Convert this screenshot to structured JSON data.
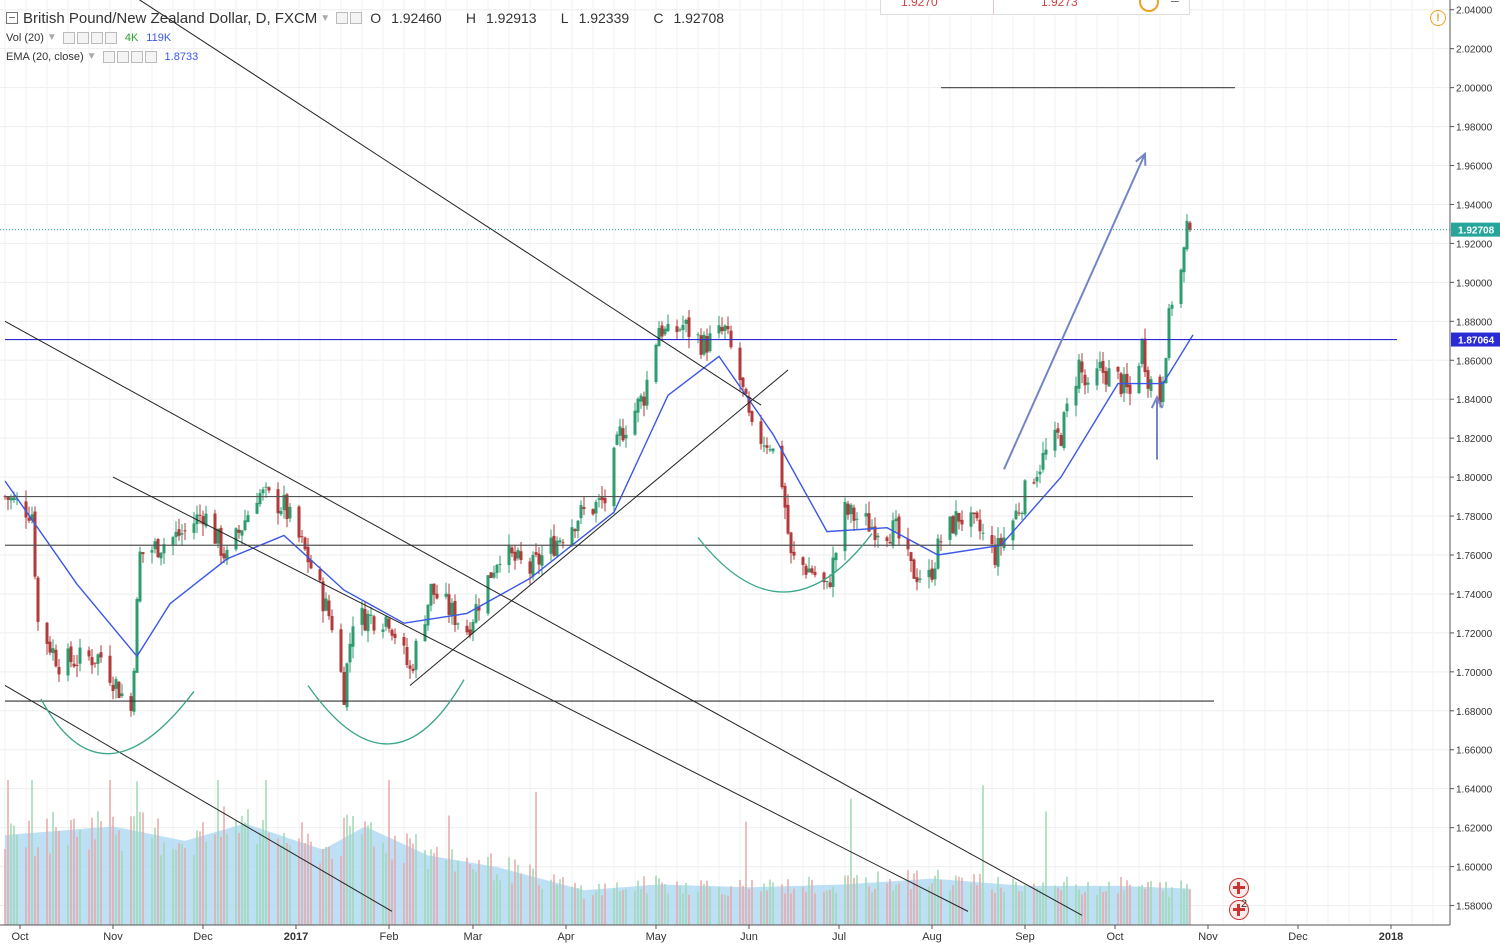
{
  "legend": {
    "symbol": "British Pound/New Zealand Dollar, D, FXCM",
    "open_label": "O",
    "open": "1.92460",
    "high_label": "H",
    "high": "1.92913",
    "low_label": "L",
    "low": "1.92339",
    "close_label": "C",
    "close": "1.92708",
    "vol_name": "Vol (20)",
    "vol_value_1": "4K",
    "vol_value_2": "119K",
    "ema_name": "EMA (20, close)",
    "ema_value": "1.8733"
  },
  "top_widget": {
    "bid": "1.9270",
    "ask": "1.9273"
  },
  "flags": {
    "count": "2"
  },
  "colors": {
    "ema": "#3a57e8",
    "resistance": "#2b2bd6",
    "candle_up": "#2e9c6f",
    "candle_down": "#b33a3a",
    "volume_area": "#a8d6f2",
    "cup_arcs": "#3aa58a",
    "arrows": "#7385c4",
    "last_price": "#26a69a"
  },
  "chart_data": {
    "type": "candlestick",
    "title": "British Pound/New Zealand Dollar, D, FXCM",
    "x_ticks": [
      "Oct",
      "Nov",
      "Dec",
      "2017",
      "Feb",
      "Mar",
      "Apr",
      "May",
      "Jun",
      "Jul",
      "Aug",
      "Sep",
      "Oct",
      "Nov",
      "Dec",
      "2018"
    ],
    "y_ticks": [
      "2.04000",
      "2.02000",
      "2.00000",
      "1.98000",
      "1.96000",
      "1.94000",
      "1.92000",
      "1.90000",
      "1.88000",
      "1.86000",
      "1.84000",
      "1.82000",
      "1.80000",
      "1.78000",
      "1.76000",
      "1.74000",
      "1.72000",
      "1.70000",
      "1.68000",
      "1.66000",
      "1.64000",
      "1.62000",
      "1.60000",
      "1.58000"
    ],
    "ylim": [
      1.57,
      2.045
    ],
    "grid": true,
    "last_price_label": "1.92708",
    "level_label": "1.87064",
    "anchors": [
      {
        "date": "2016-09-26",
        "close": 1.79
      },
      {
        "date": "2016-10-05",
        "close": 1.782
      },
      {
        "date": "2016-10-07",
        "close": 1.725
      },
      {
        "date": "2016-10-14",
        "close": 1.705
      },
      {
        "date": "2016-10-28",
        "close": 1.708
      },
      {
        "date": "2016-11-07",
        "close": 1.68
      },
      {
        "date": "2016-11-10",
        "close": 1.76
      },
      {
        "date": "2016-11-25",
        "close": 1.772
      },
      {
        "date": "2016-12-01",
        "close": 1.782
      },
      {
        "date": "2016-12-09",
        "close": 1.758
      },
      {
        "date": "2016-12-19",
        "close": 1.792
      },
      {
        "date": "2016-12-28",
        "close": 1.785
      },
      {
        "date": "2017-01-05",
        "close": 1.758
      },
      {
        "date": "2017-01-13",
        "close": 1.725
      },
      {
        "date": "2017-01-17",
        "close": 1.69
      },
      {
        "date": "2017-01-20",
        "close": 1.728
      },
      {
        "date": "2017-02-01",
        "close": 1.728
      },
      {
        "date": "2017-02-08",
        "close": 1.7
      },
      {
        "date": "2017-02-15",
        "close": 1.742
      },
      {
        "date": "2017-02-27",
        "close": 1.722
      },
      {
        "date": "2017-03-10",
        "close": 1.762
      },
      {
        "date": "2017-03-20",
        "close": 1.752
      },
      {
        "date": "2017-04-05",
        "close": 1.78
      },
      {
        "date": "2017-04-14",
        "close": 1.788
      },
      {
        "date": "2017-04-19",
        "close": 1.822
      },
      {
        "date": "2017-04-27",
        "close": 1.842
      },
      {
        "date": "2017-05-02",
        "close": 1.878
      },
      {
        "date": "2017-05-05",
        "close": 1.872
      },
      {
        "date": "2017-05-10",
        "close": 1.878
      },
      {
        "date": "2017-05-17",
        "close": 1.868
      },
      {
        "date": "2017-05-24",
        "close": 1.875
      },
      {
        "date": "2017-05-29",
        "close": 1.85
      },
      {
        "date": "2017-06-02",
        "close": 1.822
      },
      {
        "date": "2017-06-08",
        "close": 1.818
      },
      {
        "date": "2017-06-12",
        "close": 1.798
      },
      {
        "date": "2017-06-15",
        "close": 1.758
      },
      {
        "date": "2017-06-22",
        "close": 1.752
      },
      {
        "date": "2017-06-27",
        "close": 1.742
      },
      {
        "date": "2017-07-03",
        "close": 1.782
      },
      {
        "date": "2017-07-12",
        "close": 1.775
      },
      {
        "date": "2017-07-20",
        "close": 1.772
      },
      {
        "date": "2017-07-25",
        "close": 1.752
      },
      {
        "date": "2017-07-31",
        "close": 1.748
      },
      {
        "date": "2017-08-04",
        "close": 1.768
      },
      {
        "date": "2017-08-10",
        "close": 1.78
      },
      {
        "date": "2017-08-17",
        "close": 1.772
      },
      {
        "date": "2017-08-22",
        "close": 1.76
      },
      {
        "date": "2017-08-28",
        "close": 1.778
      },
      {
        "date": "2017-09-04",
        "close": 1.802
      },
      {
        "date": "2017-09-08",
        "close": 1.812
      },
      {
        "date": "2017-09-13",
        "close": 1.822
      },
      {
        "date": "2017-09-19",
        "close": 1.858
      },
      {
        "date": "2017-09-22",
        "close": 1.842
      },
      {
        "date": "2017-09-26",
        "close": 1.855
      },
      {
        "date": "2017-10-02",
        "close": 1.85
      },
      {
        "date": "2017-10-06",
        "close": 1.842
      },
      {
        "date": "2017-10-10",
        "close": 1.868
      },
      {
        "date": "2017-10-12",
        "close": 1.852
      },
      {
        "date": "2017-10-16",
        "close": 1.84
      },
      {
        "date": "2017-10-18",
        "close": 1.868
      },
      {
        "date": "2017-10-20",
        "close": 1.892
      },
      {
        "date": "2017-10-23",
        "close": 1.905
      },
      {
        "date": "2017-10-25",
        "close": 1.925
      },
      {
        "date": "2017-10-26",
        "close": 1.927
      }
    ],
    "ema_points": [
      {
        "date": "2016-09-26",
        "value": 1.798
      },
      {
        "date": "2016-10-20",
        "value": 1.745
      },
      {
        "date": "2016-11-09",
        "value": 1.708
      },
      {
        "date": "2016-11-20",
        "value": 1.735
      },
      {
        "date": "2016-12-09",
        "value": 1.758
      },
      {
        "date": "2016-12-28",
        "value": 1.77
      },
      {
        "date": "2017-01-17",
        "value": 1.742
      },
      {
        "date": "2017-02-06",
        "value": 1.725
      },
      {
        "date": "2017-02-27",
        "value": 1.73
      },
      {
        "date": "2017-03-20",
        "value": 1.748
      },
      {
        "date": "2017-04-17",
        "value": 1.782
      },
      {
        "date": "2017-05-05",
        "value": 1.842
      },
      {
        "date": "2017-05-22",
        "value": 1.862
      },
      {
        "date": "2017-06-09",
        "value": 1.822
      },
      {
        "date": "2017-06-27",
        "value": 1.772
      },
      {
        "date": "2017-07-17",
        "value": 1.774
      },
      {
        "date": "2017-08-03",
        "value": 1.76
      },
      {
        "date": "2017-08-24",
        "value": 1.765
      },
      {
        "date": "2017-09-13",
        "value": 1.8
      },
      {
        "date": "2017-10-02",
        "value": 1.848
      },
      {
        "date": "2017-10-17",
        "value": 1.848
      },
      {
        "date": "2017-10-27",
        "value": 1.873
      }
    ],
    "volume_profile": [
      {
        "date": "2016-09-26",
        "value": 0.62
      },
      {
        "date": "2016-11-01",
        "value": 0.68
      },
      {
        "date": "2016-11-25",
        "value": 0.58
      },
      {
        "date": "2016-12-15",
        "value": 0.7
      },
      {
        "date": "2017-01-10",
        "value": 0.52
      },
      {
        "date": "2017-01-24",
        "value": 0.68
      },
      {
        "date": "2017-02-14",
        "value": 0.48
      },
      {
        "date": "2017-03-09",
        "value": 0.4
      },
      {
        "date": "2017-04-07",
        "value": 0.24
      },
      {
        "date": "2017-05-02",
        "value": 0.28
      },
      {
        "date": "2017-06-01",
        "value": 0.26
      },
      {
        "date": "2017-07-03",
        "value": 0.28
      },
      {
        "date": "2017-08-01",
        "value": 0.32
      },
      {
        "date": "2017-09-01",
        "value": 0.27
      },
      {
        "date": "2017-10-02",
        "value": 0.27
      },
      {
        "date": "2017-10-27",
        "value": 0.25
      }
    ],
    "drawings": {
      "horizontal_levels": [
        {
          "value": 2.0,
          "from": "2017-08-04",
          "to": "2017-11-10",
          "color": "#555555"
        },
        {
          "value": 1.87064,
          "from": "2016-09-26",
          "to": "2018-01-03",
          "color": "#2b2bd6"
        },
        {
          "value": 1.79,
          "from": "2016-09-26",
          "to": "2017-10-27",
          "color": "#555555"
        },
        {
          "value": 1.765,
          "from": "2016-09-26",
          "to": "2017-10-27",
          "color": "#555555"
        },
        {
          "value": 1.685,
          "from": "2016-09-26",
          "to": "2017-11-03",
          "color": "#333333"
        }
      ],
      "trend_lines": [
        {
          "from": [
            "2016-10-21",
            2.065
          ],
          "to": [
            "2017-06-05",
            1.837
          ]
        },
        {
          "from": [
            "2016-09-26",
            1.88
          ],
          "to": [
            "2017-09-20",
            1.575
          ]
        },
        {
          "from": [
            "2016-09-26",
            1.693
          ],
          "to": [
            "2017-02-02",
            1.577
          ]
        },
        {
          "from": [
            "2016-11-01",
            1.8
          ],
          "to": [
            "2017-08-13",
            1.577
          ]
        },
        {
          "from": [
            "2017-02-08",
            1.693
          ],
          "to": [
            "2017-06-14",
            1.855
          ]
        }
      ],
      "arcs": [
        {
          "from": [
            "2016-10-08",
            1.686
          ],
          "bottom": [
            "2016-10-31",
            1.658
          ],
          "to": [
            "2016-11-28",
            1.69
          ]
        },
        {
          "from": [
            "2017-01-05",
            1.693
          ],
          "bottom": [
            "2017-02-01",
            1.663
          ],
          "to": [
            "2017-02-26",
            1.696
          ]
        },
        {
          "from": [
            "2017-05-15",
            1.769
          ],
          "bottom": [
            "2017-06-13",
            1.741
          ],
          "to": [
            "2017-07-12",
            1.771
          ]
        }
      ],
      "arrows": [
        {
          "from": [
            "2017-08-25",
            1.804
          ],
          "to": [
            "2017-10-11",
            1.966
          ]
        },
        {
          "from": [
            "2017-10-15",
            1.809
          ],
          "to": [
            "2017-10-15",
            1.841
          ]
        }
      ]
    }
  }
}
